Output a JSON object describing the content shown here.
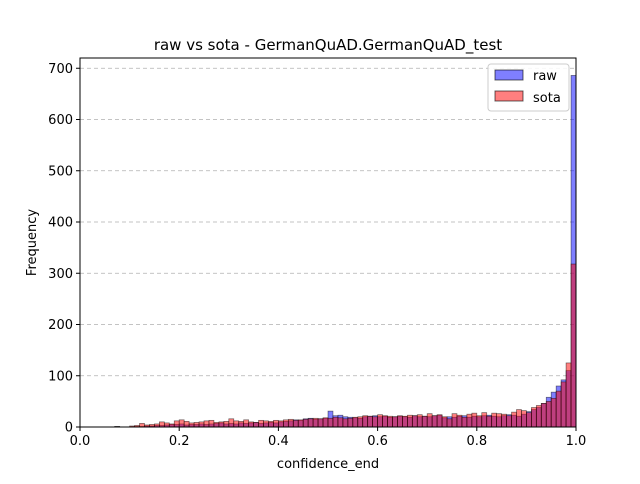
{
  "chart_data": {
    "type": "histogram",
    "title": "raw vs sota - GermanQuAD.GermanQuAD_test",
    "xlabel": "confidence_end",
    "ylabel": "Frequency",
    "xlim": [
      0.0,
      1.0
    ],
    "ylim": [
      0,
      720
    ],
    "xticks": [
      "0.0",
      "0.2",
      "0.4",
      "0.6",
      "0.8",
      "1.0"
    ],
    "xtick_values": [
      0.0,
      0.2,
      0.4,
      0.6,
      0.8,
      1.0
    ],
    "yticks": [
      "0",
      "100",
      "200",
      "300",
      "400",
      "500",
      "600",
      "700"
    ],
    "ytick_values": [
      0,
      100,
      200,
      300,
      400,
      500,
      600,
      700
    ],
    "grid": "horizontal dashed",
    "legend_position": "top-right",
    "bins": 100,
    "bin_start": 0.0,
    "bin_width": 0.01,
    "series": [
      {
        "name": "raw",
        "color": "#0000ff",
        "counts": [
          0,
          0,
          0,
          0,
          0,
          0,
          0,
          1,
          0,
          0,
          0,
          1,
          1,
          2,
          2,
          3,
          3,
          4,
          5,
          5,
          6,
          4,
          5,
          5,
          6,
          5,
          6,
          7,
          8,
          6,
          7,
          6,
          8,
          7,
          8,
          9,
          7,
          8,
          9,
          8,
          10,
          11,
          12,
          14,
          13,
          16,
          17,
          15,
          16,
          17,
          31,
          22,
          23,
          20,
          19,
          18,
          17,
          20,
          21,
          22,
          20,
          21,
          19,
          20,
          21,
          20,
          19,
          22,
          20,
          21,
          20,
          22,
          23,
          18,
          20,
          19,
          21,
          22,
          19,
          21,
          20,
          22,
          23,
          21,
          20,
          22,
          24,
          23,
          21,
          25,
          30,
          34,
          38,
          46,
          58,
          68,
          80,
          92,
          110,
          686
        ]
      },
      {
        "name": "sota",
        "color": "#ff0000",
        "counts": [
          0,
          0,
          0,
          0,
          0,
          0,
          0,
          1,
          0,
          0,
          2,
          3,
          7,
          4,
          5,
          6,
          10,
          8,
          6,
          12,
          14,
          11,
          8,
          9,
          10,
          12,
          13,
          9,
          10,
          11,
          16,
          12,
          11,
          14,
          10,
          9,
          13,
          12,
          11,
          13,
          12,
          14,
          15,
          13,
          14,
          15,
          16,
          17,
          16,
          18,
          17,
          19,
          18,
          16,
          17,
          19,
          20,
          22,
          21,
          20,
          24,
          22,
          21,
          20,
          22,
          21,
          23,
          22,
          24,
          21,
          26,
          22,
          24,
          20,
          16,
          26,
          23,
          19,
          25,
          27,
          22,
          28,
          21,
          27,
          26,
          25,
          22,
          29,
          34,
          32,
          28,
          38,
          42,
          46,
          50,
          56,
          70,
          88,
          125,
          318
        ]
      }
    ]
  }
}
